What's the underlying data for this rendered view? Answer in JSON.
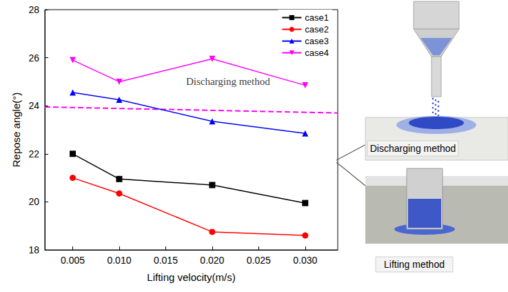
{
  "chart_data": {
    "type": "line",
    "x_label": "Lifting velocity(m/s)",
    "y_label": "Repose angle(°)",
    "x": [
      0.005,
      0.01,
      0.02,
      0.03
    ],
    "series": [
      {
        "name": "case1",
        "color": "#000000",
        "marker": "square",
        "values": [
          22.0,
          20.95,
          20.7,
          19.95
        ]
      },
      {
        "name": "case2",
        "color": "#ff0000",
        "marker": "circle",
        "values": [
          21.0,
          20.35,
          18.75,
          18.6
        ]
      },
      {
        "name": "case3",
        "color": "#0000ff",
        "marker": "triangle",
        "values": [
          24.55,
          24.25,
          23.35,
          22.85
        ]
      },
      {
        "name": "case4",
        "color": "#ff00ff",
        "marker": "inverted_triangle",
        "values": [
          25.9,
          25.0,
          25.95,
          24.85
        ]
      }
    ],
    "xlim": [
      0.002,
      0.0335
    ],
    "xticks": [
      0.005,
      {
        "value": 0.01,
        "label": "0.010"
      },
      0.015,
      {
        "value": 0.02,
        "label": "0.020"
      },
      0.025,
      {
        "value": 0.03,
        "label": "0.030"
      }
    ],
    "ylim": [
      18,
      28
    ],
    "yticks": [
      18,
      20,
      22,
      24,
      26,
      28
    ],
    "grid": false,
    "legend": "upper right",
    "reference_line": {
      "color": "#ff00ff",
      "line_style": "dashed",
      "x": [
        0.002,
        0.0335
      ],
      "values": [
        23.95,
        23.7
      ]
    },
    "annotations": [
      {
        "text": "Discharging method",
        "x": 0.0217,
        "y": 25.0
      }
    ],
    "insets": [
      {
        "label": "Discharging method"
      },
      {
        "label": "Lifting method"
      }
    ]
  }
}
